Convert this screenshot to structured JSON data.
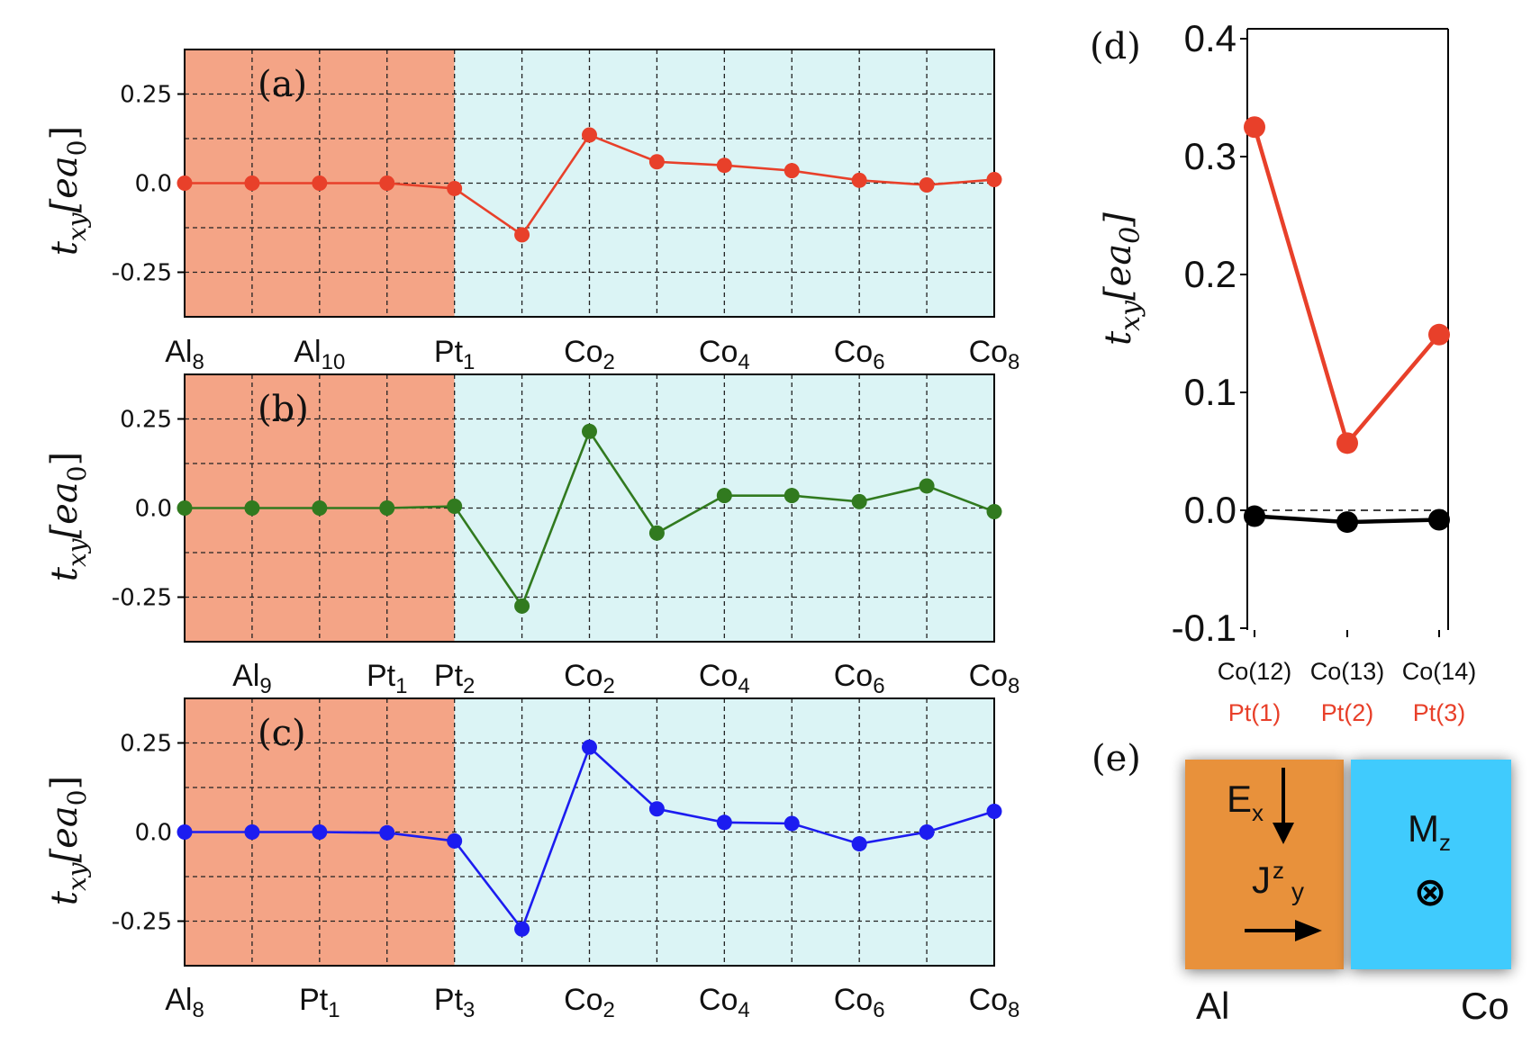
{
  "colors": {
    "al_region": "#f4a486",
    "co_region": "#dbf4f5",
    "series_a": "#e8402a",
    "series_b": "#317a1f",
    "series_c": "#1c1cf0",
    "d_black": "#000000",
    "e_al": "#e8913a",
    "e_co": "#3fcbfd"
  },
  "chart_data": [
    {
      "panel": "(a)",
      "type": "line",
      "ylabel": "t_xy[ea_0]",
      "ylim": [
        -0.375,
        0.375
      ],
      "yticks": [
        "0.25",
        "0.0",
        "-0.25"
      ],
      "ytick_values": [
        0.25,
        0.0,
        -0.25
      ],
      "x_ticklabels": [
        {
          "base": "Al",
          "sub": "8",
          "i": 0
        },
        {
          "base": "Al",
          "sub": "10",
          "i": 2
        },
        {
          "base": "Pt",
          "sub": "1",
          "i": 4
        },
        {
          "base": "Co",
          "sub": "2",
          "i": 6
        },
        {
          "base": "Co",
          "sub": "4",
          "i": 8
        },
        {
          "base": "Co",
          "sub": "6",
          "i": 10
        },
        {
          "base": "Co",
          "sub": "8",
          "i": 12
        }
      ],
      "region_boundary_index": 4,
      "values": [
        0.0,
        0.0,
        0.0,
        0.0,
        -0.015,
        -0.145,
        0.135,
        0.06,
        0.05,
        0.035,
        0.008,
        -0.005,
        0.01
      ]
    },
    {
      "panel": "(b)",
      "type": "line",
      "ylabel": "t_xy[ea_0]",
      "ylim": [
        -0.375,
        0.375
      ],
      "yticks": [
        "0.25",
        "0.0",
        "-0.25"
      ],
      "ytick_values": [
        0.25,
        0.0,
        -0.25
      ],
      "x_ticklabels": [
        {
          "base": "Al",
          "sub": "9",
          "i": 1
        },
        {
          "base": "Pt",
          "sub": "1",
          "i": 3
        },
        {
          "base": "Pt",
          "sub": "2",
          "i": 4
        },
        {
          "base": "Co",
          "sub": "2",
          "i": 6
        },
        {
          "base": "Co",
          "sub": "4",
          "i": 8
        },
        {
          "base": "Co",
          "sub": "6",
          "i": 10
        },
        {
          "base": "Co",
          "sub": "8",
          "i": 12
        }
      ],
      "region_boundary_index": 4,
      "values": [
        0.0,
        0.0,
        0.0,
        0.0,
        0.005,
        -0.275,
        0.215,
        -0.07,
        0.035,
        0.035,
        0.018,
        0.062,
        -0.01
      ]
    },
    {
      "panel": "(c)",
      "type": "line",
      "ylabel": "t_xy[ea_0]",
      "ylim": [
        -0.375,
        0.375
      ],
      "yticks": [
        "0.25",
        "0.0",
        "-0.25"
      ],
      "ytick_values": [
        0.25,
        0.0,
        -0.25
      ],
      "x_ticklabels": [
        {
          "base": "Al",
          "sub": "8",
          "i": 0
        },
        {
          "base": "Pt",
          "sub": "1",
          "i": 2
        },
        {
          "base": "Pt",
          "sub": "3",
          "i": 4
        },
        {
          "base": "Co",
          "sub": "2",
          "i": 6
        },
        {
          "base": "Co",
          "sub": "4",
          "i": 8
        },
        {
          "base": "Co",
          "sub": "6",
          "i": 10
        },
        {
          "base": "Co",
          "sub": "8",
          "i": 12
        }
      ],
      "region_boundary_index": 4,
      "values": [
        0.0,
        0.0,
        0.0,
        -0.002,
        -0.025,
        -0.272,
        0.238,
        0.065,
        0.027,
        0.024,
        -0.033,
        0.0,
        0.058
      ]
    },
    {
      "panel": "(d)",
      "type": "line",
      "ylabel": "t_xy[ea_0]",
      "ylim": [
        -0.1,
        0.4
      ],
      "yticks": [
        "0.4",
        "0.3",
        "0.2",
        "0.1",
        "0.0",
        "-0.1"
      ],
      "ytick_values": [
        0.4,
        0.3,
        0.2,
        0.1,
        0.0,
        -0.1
      ],
      "categories": [
        "Co(12)",
        "Co(13)",
        "Co(14)"
      ],
      "categories_secondary": [
        "Pt(1)",
        "Pt(2)",
        "Pt(3)"
      ],
      "series": [
        {
          "name": "red",
          "values": [
            0.325,
            0.057,
            0.149
          ]
        },
        {
          "name": "black",
          "values": [
            -0.005,
            -0.01,
            -0.008
          ]
        }
      ],
      "reference_line": 0.0
    }
  ],
  "panel_e": {
    "label": "(e)",
    "ex_base": "E",
    "ex_sub": "x",
    "j_base": "J",
    "j_sup": "z",
    "j_sub": "y",
    "mz_base": "M",
    "mz_sub": "z",
    "mz_symbol": "⊗",
    "left_caption": "Al",
    "right_caption": "Co"
  }
}
